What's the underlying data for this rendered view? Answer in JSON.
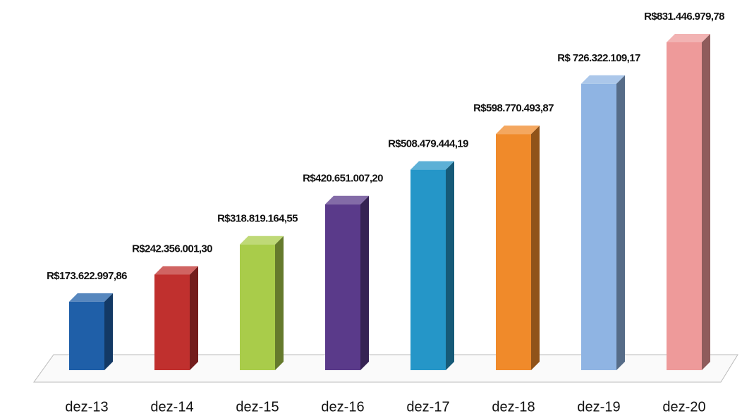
{
  "chart_data": {
    "type": "bar3d",
    "categories": [
      "dez-13",
      "dez-14",
      "dez-15",
      "dez-16",
      "dez-17",
      "dez-18",
      "dez-19",
      "dez-20"
    ],
    "values": [
      173622997.86,
      242356001.3,
      318819164.55,
      420651007.2,
      508479444.19,
      598770493.87,
      726322109.17,
      831446979.78
    ],
    "value_labels": [
      "R$173.622.997,86",
      "R$242.356.001,30",
      "R$318.819.164,55",
      "R$420.651.007,20",
      "R$508.479.444,19",
      "R$598.770.493,87",
      "R$ 726.322.109,17",
      "R$831.446.979,78"
    ],
    "colors": [
      "#1f5fa8",
      "#c0302e",
      "#a9cc4a",
      "#5a3a8a",
      "#2596c8",
      "#f08a2a",
      "#8fb4e3",
      "#ee9a9a"
    ]
  }
}
